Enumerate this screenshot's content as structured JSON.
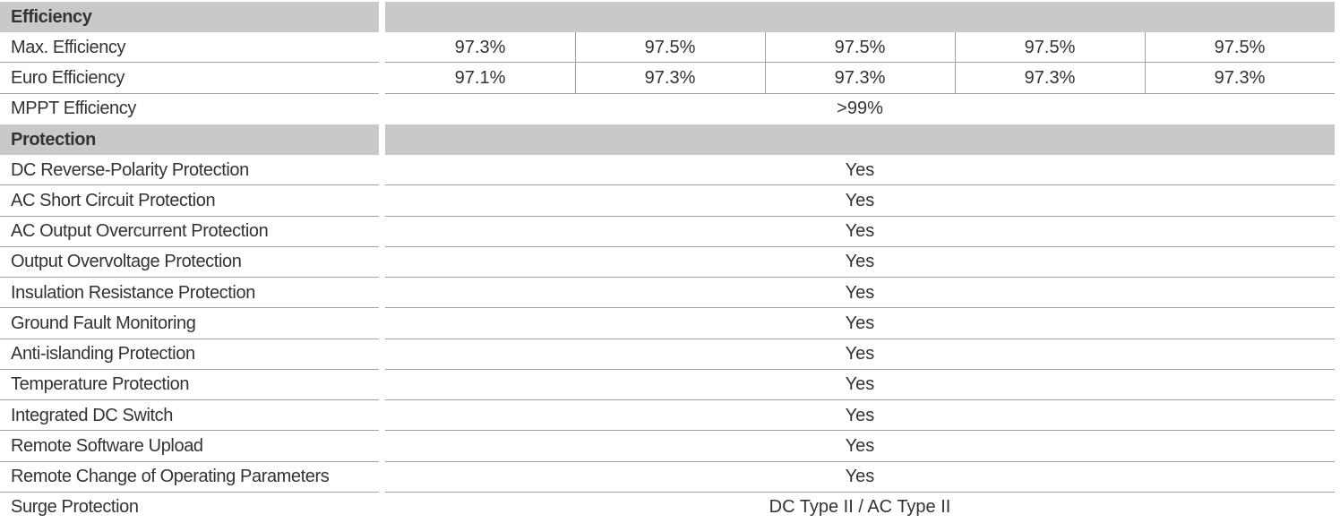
{
  "sections": [
    {
      "title": "Efficiency",
      "rows": [
        {
          "label": "Max. Efficiency",
          "values": [
            "97.3%",
            "97.5%",
            "97.5%",
            "97.5%",
            "97.5%"
          ]
        },
        {
          "label": "Euro Efficiency",
          "values": [
            "97.1%",
            "97.3%",
            "97.3%",
            "97.3%",
            "97.3%"
          ]
        },
        {
          "label": "MPPT Efficiency",
          "values": [
            ">99%"
          ]
        }
      ]
    },
    {
      "title": "Protection",
      "rows": [
        {
          "label": "DC Reverse-Polarity Protection",
          "values": [
            "Yes"
          ]
        },
        {
          "label": "AC Short Circuit Protection",
          "values": [
            "Yes"
          ]
        },
        {
          "label": "AC Output Overcurrent Protection",
          "values": [
            "Yes"
          ]
        },
        {
          "label": "Output Overvoltage Protection",
          "values": [
            "Yes"
          ]
        },
        {
          "label": "Insulation Resistance Protection",
          "values": [
            "Yes"
          ]
        },
        {
          "label": "Ground Fault Monitoring",
          "values": [
            "Yes"
          ]
        },
        {
          "label": "Anti-islanding Protection",
          "values": [
            "Yes"
          ]
        },
        {
          "label": "Temperature Protection",
          "values": [
            "Yes"
          ]
        },
        {
          "label": "Integrated DC Switch",
          "values": [
            "Yes"
          ]
        },
        {
          "label": "Remote Software Upload",
          "values": [
            "Yes"
          ]
        },
        {
          "label": "Remote Change of Operating Parameters",
          "values": [
            "Yes"
          ]
        },
        {
          "label": "Surge Protection",
          "values": [
            "DC Type II / AC Type II"
          ]
        }
      ]
    }
  ]
}
